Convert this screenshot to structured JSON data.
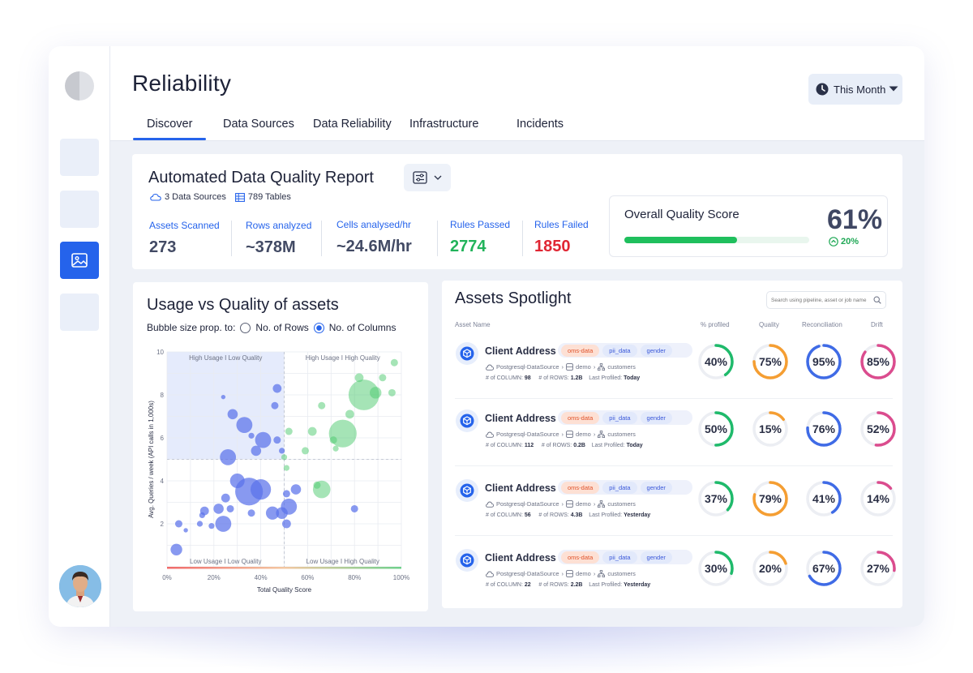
{
  "page_title": "Reliability",
  "period_selector": {
    "label": "This Month",
    "icon": "clock-icon"
  },
  "tabs": [
    {
      "label": "Discover",
      "active": true
    },
    {
      "label": "Data Sources"
    },
    {
      "label": "Data Reliability"
    },
    {
      "label": "Infrastructure"
    },
    {
      "label": "Incidents"
    }
  ],
  "report": {
    "title": "Automated Data Quality Report",
    "sources": "3 Data Sources",
    "tables": "789 Tables",
    "metrics": [
      {
        "label": "Assets Scanned",
        "value": "273"
      },
      {
        "label": "Rows analyzed",
        "value": "~378M"
      },
      {
        "label": "Cells analysed/hr",
        "value": "~24.6M/hr"
      },
      {
        "label": "Rules Passed",
        "value": "2774"
      },
      {
        "label": "Rules Failed",
        "value": "1850"
      }
    ],
    "overall": {
      "title": "Overall Quality Score",
      "value": "61%",
      "fraction": 0.61,
      "delta": "20%"
    }
  },
  "usage": {
    "title": "Usage vs Quality of assets",
    "bubble_label": "Bubble size prop. to:",
    "options": [
      "No. of Rows",
      "No. of Columns"
    ],
    "selected_option": 1
  },
  "chart_data": {
    "type": "scatter",
    "title": "Usage vs Quality of assets",
    "xlabel": "Total Quality Score",
    "ylabel": "Avg. Queries / week (API calls in 1,000s)",
    "xlim": [
      0,
      100
    ],
    "ylim": [
      0,
      10
    ],
    "x_ticks": [
      "0%",
      "20%",
      "40%",
      "60%",
      "80%",
      "100%"
    ],
    "y_ticks": [
      "2",
      "4",
      "6",
      "8",
      "10"
    ],
    "quadrants": [
      "High Usage I Low Quality",
      "High Usage I High Quality",
      "Low Usage I Low Quality",
      "Low Usage I High Quality"
    ],
    "thresholds": {
      "x": 50,
      "y": 5
    },
    "points": [
      {
        "x": 4,
        "y": 0.8,
        "size": 8
      },
      {
        "x": 5,
        "y": 2.0,
        "size": 5
      },
      {
        "x": 8,
        "y": 1.7,
        "size": 3
      },
      {
        "x": 14,
        "y": 2.0,
        "size": 4
      },
      {
        "x": 15,
        "y": 2.4,
        "size": 4
      },
      {
        "x": 16,
        "y": 2.6,
        "size": 6
      },
      {
        "x": 19,
        "y": 1.9,
        "size": 4
      },
      {
        "x": 22,
        "y": 2.7,
        "size": 7
      },
      {
        "x": 24,
        "y": 2.0,
        "size": 11
      },
      {
        "x": 25,
        "y": 3.2,
        "size": 6
      },
      {
        "x": 27,
        "y": 2.7,
        "size": 5
      },
      {
        "x": 26,
        "y": 5.1,
        "size": 11
      },
      {
        "x": 30,
        "y": 4.0,
        "size": 10
      },
      {
        "x": 35,
        "y": 3.5,
        "size": 19
      },
      {
        "x": 40,
        "y": 3.6,
        "size": 14
      },
      {
        "x": 36,
        "y": 2.5,
        "size": 5
      },
      {
        "x": 28,
        "y": 7.1,
        "size": 7
      },
      {
        "x": 24,
        "y": 7.9,
        "size": 3
      },
      {
        "x": 33,
        "y": 6.6,
        "size": 11
      },
      {
        "x": 36,
        "y": 6.1,
        "size": 4
      },
      {
        "x": 38,
        "y": 5.4,
        "size": 7
      },
      {
        "x": 41,
        "y": 5.9,
        "size": 11
      },
      {
        "x": 46,
        "y": 7.5,
        "size": 5
      },
      {
        "x": 47,
        "y": 8.3,
        "size": 6
      },
      {
        "x": 47,
        "y": 5.9,
        "size": 5
      },
      {
        "x": 49,
        "y": 5.4,
        "size": 4
      },
      {
        "x": 50,
        "y": 5.1,
        "size": 4
      },
      {
        "x": 51,
        "y": 4.6,
        "size": 4
      },
      {
        "x": 52,
        "y": 2.8,
        "size": 11
      },
      {
        "x": 51,
        "y": 3.4,
        "size": 5
      },
      {
        "x": 55,
        "y": 3.6,
        "size": 7
      },
      {
        "x": 51,
        "y": 2.0,
        "size": 6
      },
      {
        "x": 49,
        "y": 2.5,
        "size": 8
      },
      {
        "x": 45,
        "y": 2.5,
        "size": 9
      },
      {
        "x": 52,
        "y": 6.3,
        "size": 5
      },
      {
        "x": 59,
        "y": 5.4,
        "size": 5
      },
      {
        "x": 62,
        "y": 6.3,
        "size": 6
      },
      {
        "x": 66,
        "y": 3.6,
        "size": 12
      },
      {
        "x": 64,
        "y": 3.8,
        "size": 5
      },
      {
        "x": 66,
        "y": 7.5,
        "size": 5
      },
      {
        "x": 71,
        "y": 5.9,
        "size": 5
      },
      {
        "x": 75,
        "y": 6.2,
        "size": 19
      },
      {
        "x": 78,
        "y": 7.1,
        "size": 6
      },
      {
        "x": 82,
        "y": 8.8,
        "size": 6
      },
      {
        "x": 84,
        "y": 8.0,
        "size": 21
      },
      {
        "x": 89,
        "y": 8.1,
        "size": 8
      },
      {
        "x": 92,
        "y": 8.8,
        "size": 5
      },
      {
        "x": 96,
        "y": 8.1,
        "size": 5
      },
      {
        "x": 97,
        "y": 9.5,
        "size": 5
      },
      {
        "x": 72,
        "y": 5.5,
        "size": 4
      },
      {
        "x": 80,
        "y": 2.7,
        "size": 5
      }
    ]
  },
  "spotlight": {
    "title": "Assets Spotlight",
    "search_placeholder": "Search using pipeline, asset or job name...",
    "columns": [
      "Asset Name",
      "% profiled",
      "Quality",
      "Reconciliation",
      "Drift"
    ],
    "label_columns": "# of COLUMN:",
    "label_rows": "# of ROWS:",
    "label_profiled": "Last Profiled:",
    "rows": [
      {
        "name": "Client Address",
        "tags": [
          "oms-data",
          "pii_data",
          "gender"
        ],
        "source": "Postgresql-DataSource",
        "schema": "demo",
        "table": "customers",
        "columns": "98",
        "row_count": "1.2B",
        "last_profiled": "Today",
        "profiled": "40%",
        "quality": "75%",
        "reconciliation": "95%",
        "drift": "85%",
        "profiled_v": 0.4,
        "quality_v": 0.75,
        "reconciliation_v": 0.95,
        "drift_v": 0.85
      },
      {
        "name": "Client Address",
        "tags": [
          "oms-data",
          "pii_data",
          "gender"
        ],
        "source": "Postgresql-DataSource",
        "schema": "demo",
        "table": "customers",
        "columns": "112",
        "row_count": "0.2B",
        "last_profiled": "Today",
        "profiled": "50%",
        "quality": "15%",
        "reconciliation": "76%",
        "drift": "52%",
        "profiled_v": 0.5,
        "quality_v": 0.15,
        "reconciliation_v": 0.76,
        "drift_v": 0.52
      },
      {
        "name": "Client Address",
        "tags": [
          "oms-data",
          "pii_data",
          "gender"
        ],
        "source": "Postgresql-DataSource",
        "schema": "demo",
        "table": "customers",
        "columns": "56",
        "row_count": "4.3B",
        "last_profiled": "Yesterday",
        "profiled": "37%",
        "quality": "79%",
        "reconciliation": "41%",
        "drift": "14%",
        "profiled_v": 0.37,
        "quality_v": 0.79,
        "reconciliation_v": 0.41,
        "drift_v": 0.14
      },
      {
        "name": "Client Address",
        "tags": [
          "oms-data",
          "pii_data",
          "gender"
        ],
        "source": "Postgresql-DataSource",
        "schema": "demo",
        "table": "customers",
        "columns": "22",
        "row_count": "2.2B",
        "last_profiled": "Yesterday",
        "profiled": "30%",
        "quality": "20%",
        "reconciliation": "67%",
        "drift": "27%",
        "profiled_v": 0.3,
        "quality_v": 0.2,
        "reconciliation_v": 0.67,
        "drift_v": 0.27
      }
    ]
  },
  "colors": {
    "accent": "#2563eb",
    "profiled": "#1fba6b",
    "quality": "#f59e32",
    "reconciliation": "#3f6be6",
    "drift": "#db4c8e"
  }
}
